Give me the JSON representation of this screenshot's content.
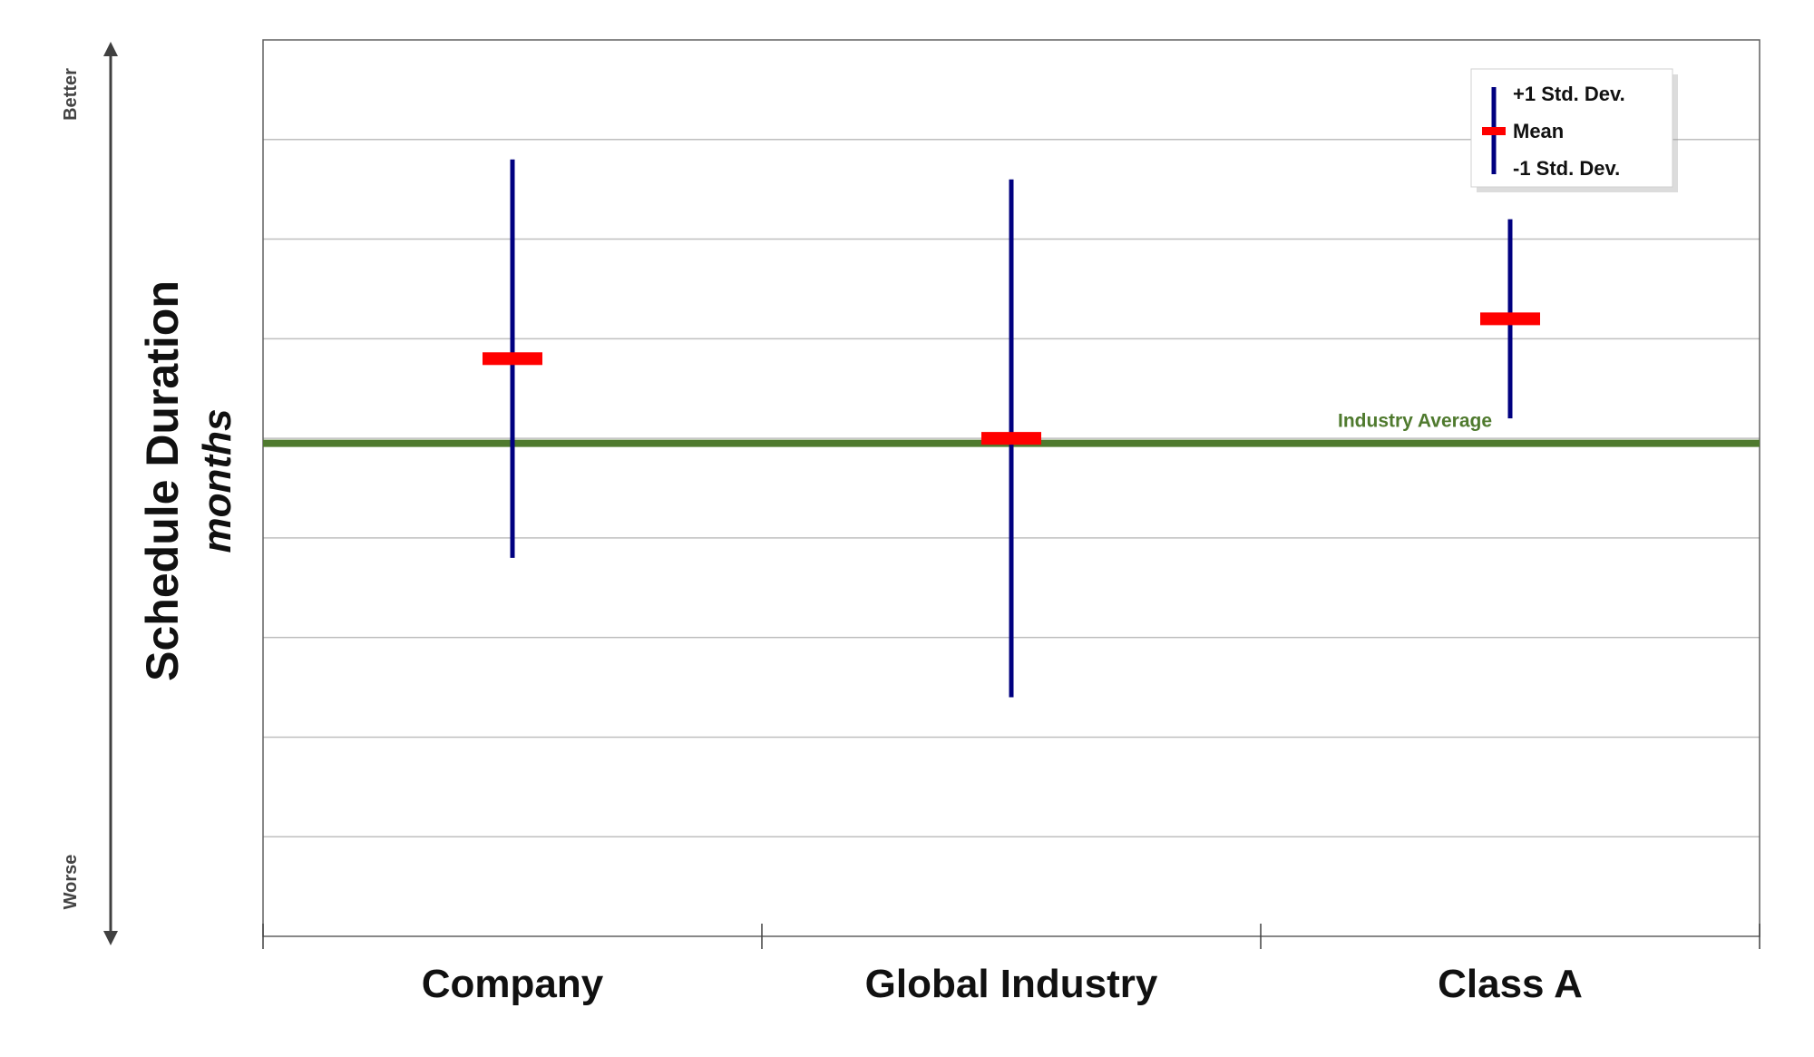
{
  "chart_data": {
    "type": "errorbar",
    "title": "",
    "ylabel": "Schedule Duration",
    "ylabel_unit": "months",
    "direction_labels": {
      "top": "Better",
      "bottom": "Worse"
    },
    "categories": [
      "Company",
      "Global Industry",
      "Class A"
    ],
    "ylim": [
      0,
      9
    ],
    "grid": "horizontal",
    "series": [
      {
        "mean": 5.8,
        "plus_sd": 7.8,
        "minus_sd": 3.8
      },
      {
        "mean": 5.0,
        "plus_sd": 7.6,
        "minus_sd": 2.4
      },
      {
        "mean": 6.2,
        "plus_sd": 7.2,
        "minus_sd": 5.2
      }
    ],
    "reference_line": {
      "label": "Industry Average",
      "value": 4.95,
      "color": "#4f7a2e"
    },
    "legend": {
      "position": "top-right",
      "items": [
        "+1 Std. Dev.",
        "Mean",
        "-1 Std. Dev."
      ]
    },
    "colors": {
      "bar": "#000080",
      "mean": "#ff0000",
      "grid": "#bfbfbf",
      "axis": "#404040"
    }
  }
}
